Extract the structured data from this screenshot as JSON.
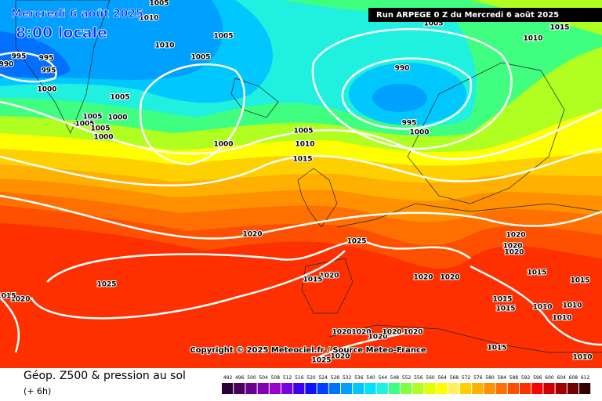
{
  "header": {
    "date": "Mercredi 6 août 2025",
    "time": "8:00 locale",
    "run": "Run ARPEGE 0 Z du Mercredi 6 août 2025"
  },
  "map": {
    "isobar_labels": [
      1005,
      1010,
      1005,
      1010,
      1005,
      995,
      995,
      990,
      995,
      1000,
      1005,
      1005,
      1000,
      1005,
      1005,
      1000,
      1000,
      1005,
      1010,
      1015,
      990,
      995,
      1000,
      1005,
      1010,
      1015,
      1020,
      1025,
      1025,
      1020,
      1015,
      1020,
      1015,
      1020,
      1020,
      1020,
      1020,
      1020,
      1015,
      1015,
      1015,
      1010,
      1015,
      1010,
      1010,
      1015,
      1010,
      1020,
      1020,
      1020,
      1020,
      1020,
      1025,
      1020
    ],
    "copyright": "Copyright © 2025 Meteociel.fr / Source Meteo-France"
  },
  "footer": {
    "title": "Géop. Z500 & pression au sol",
    "step": "(+ 6h)"
  },
  "scale": {
    "values": [
      492,
      496,
      500,
      504,
      508,
      512,
      516,
      520,
      524,
      528,
      532,
      536,
      540,
      544,
      548,
      552,
      556,
      560,
      564,
      568,
      572,
      576,
      580,
      584,
      588,
      592,
      596,
      600,
      604,
      608,
      612
    ],
    "colors": [
      "#2b0033",
      "#4a0060",
      "#6a0090",
      "#8000b0",
      "#9a00cc",
      "#7a00e0",
      "#4000f0",
      "#1010ff",
      "#0040ff",
      "#0070ff",
      "#00a0ff",
      "#00c8ff",
      "#00e0ff",
      "#20f0e0",
      "#40ff80",
      "#80ff40",
      "#b0ff20",
      "#e0ff00",
      "#ffff00",
      "#fff060",
      "#ffd000",
      "#ffb000",
      "#ff9000",
      "#ff7000",
      "#ff5000",
      "#ff3000",
      "#ff0000",
      "#d00000",
      "#a00000",
      "#700000",
      "#300000"
    ]
  }
}
